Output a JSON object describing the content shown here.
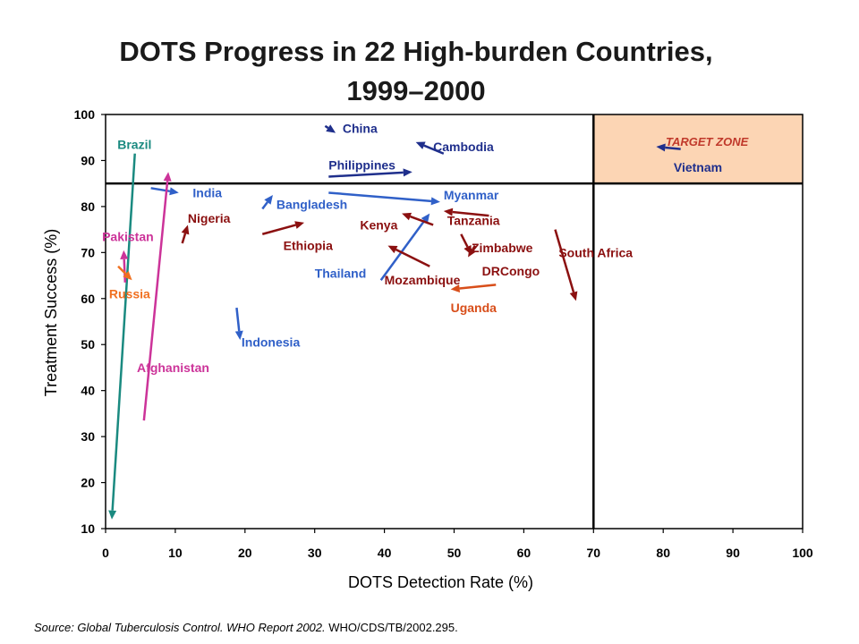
{
  "title_line1": "DOTS Progress in 22 High-burden Countries,",
  "title_line2": "1999–2000",
  "source_italic": "Source: Global Tuberculosis Control. WHO Report 2002.",
  "source_plain": " WHO/CDS/TB/2002.295.",
  "chart_data": {
    "type": "scatter",
    "xlabel": "DOTS Detection Rate (%)",
    "ylabel": "Treatment Success (%)",
    "xlim": [
      0,
      100
    ],
    "ylim": [
      10,
      100
    ],
    "xticks": [
      0,
      10,
      20,
      30,
      40,
      50,
      60,
      70,
      80,
      90,
      100
    ],
    "yticks": [
      10,
      20,
      30,
      40,
      50,
      60,
      70,
      80,
      90,
      100
    ],
    "grid": false,
    "target_zone": {
      "label": "TARGET ZONE",
      "x_min": 70,
      "y_min": 85,
      "color": "#fcd5b4"
    },
    "target_lines": {
      "x": 70,
      "y": 85
    },
    "series": [
      {
        "name": "China",
        "color": "#1f2f8c",
        "x1": 31.5,
        "y1": 97.5,
        "x2": 33,
        "y2": 96,
        "label_x": 34,
        "label_y": 97
      },
      {
        "name": "Cambodia",
        "color": "#1f2f8c",
        "x1": 48.5,
        "y1": 91.5,
        "x2": 44.5,
        "y2": 94,
        "label_x": 47,
        "label_y": 93
      },
      {
        "name": "Vietnam",
        "color": "#1f2f8c",
        "x1": 82.5,
        "y1": 92.5,
        "x2": 79,
        "y2": 93,
        "label_x": 81.5,
        "label_y": 88.5
      },
      {
        "name": "Philippines",
        "color": "#1f2f8c",
        "x1": 32,
        "y1": 86.5,
        "x2": 44,
        "y2": 87.5,
        "label_x": 32,
        "label_y": 89
      },
      {
        "name": "Brazil",
        "color": "#1a8a80",
        "x1": 4.2,
        "y1": 91.5,
        "x2": 0.9,
        "y2": 12,
        "label_x": 1.7,
        "label_y": 93.5
      },
      {
        "name": "India",
        "color": "#3060c8",
        "x1": 6.5,
        "y1": 84,
        "x2": 10.5,
        "y2": 83,
        "label_x": 12.5,
        "label_y": 83
      },
      {
        "name": "Myanmar",
        "color": "#3060c8",
        "x1": 32,
        "y1": 83,
        "x2": 48,
        "y2": 81,
        "label_x": 48.5,
        "label_y": 82.5
      },
      {
        "name": "Bangladesh",
        "color": "#3060c8",
        "x1": 22.5,
        "y1": 79.5,
        "x2": 24,
        "y2": 82.5,
        "label_x": 24.5,
        "label_y": 80.5
      },
      {
        "name": "Thailand",
        "color": "#3060c8",
        "x1": 39.5,
        "y1": 64,
        "x2": 46.5,
        "y2": 78.5,
        "label_x": 30,
        "label_y": 65.5
      },
      {
        "name": "Indonesia",
        "color": "#3060c8",
        "x1": 18.8,
        "y1": 58,
        "x2": 19.3,
        "y2": 51,
        "label_x": 19.5,
        "label_y": 50.5
      },
      {
        "name": "Nigeria",
        "color": "#8b1010",
        "x1": 11,
        "y1": 72,
        "x2": 11.8,
        "y2": 76,
        "label_x": 11.8,
        "label_y": 77.5
      },
      {
        "name": "Ethiopia",
        "color": "#8b1010",
        "x1": 22.5,
        "y1": 74,
        "x2": 28.5,
        "y2": 76.5,
        "label_x": 25.5,
        "label_y": 71.5
      },
      {
        "name": "Kenya",
        "color": "#8b1010",
        "x1": 47,
        "y1": 76,
        "x2": 42.5,
        "y2": 78.5,
        "label_x": 36.5,
        "label_y": 76
      },
      {
        "name": "Tanzania",
        "color": "#8b1010",
        "x1": 55,
        "y1": 78,
        "x2": 48.5,
        "y2": 79,
        "label_x": 49,
        "label_y": 77
      },
      {
        "name": "Zimbabwe",
        "color": "#8b1010",
        "x1": 51,
        "y1": 74,
        "x2": 52.5,
        "y2": 69.5,
        "label_x": 52.5,
        "label_y": 71
      },
      {
        "name": "Mozambique",
        "color": "#8b1010",
        "x1": 46.5,
        "y1": 67,
        "x2": 40.5,
        "y2": 71.5,
        "label_x": 40,
        "label_y": 64
      },
      {
        "name": "DRCongo",
        "color": "#8b1010",
        "x1": 53,
        "y1": 71.5,
        "x2": 52,
        "y2": 69,
        "label_x": 54,
        "label_y": 66
      },
      {
        "name": "South Africa",
        "color": "#8b1010",
        "x1": 64.5,
        "y1": 75,
        "x2": 67.5,
        "y2": 59.5,
        "label_x": 65,
        "label_y": 70
      },
      {
        "name": "Pakistan",
        "color": "#cc3399",
        "x1": 2.8,
        "y1": 63.5,
        "x2": 2.6,
        "y2": 70.5,
        "label_x": -0.5,
        "label_y": 73.5
      },
      {
        "name": "Afghanistan",
        "color": "#cc3399",
        "x1": 5.5,
        "y1": 33.5,
        "x2": 9,
        "y2": 87.5,
        "label_x": 4.5,
        "label_y": 45
      },
      {
        "name": "Russia",
        "color": "#f07020",
        "x1": 1.8,
        "y1": 67,
        "x2": 3.8,
        "y2": 64,
        "label_x": 0.5,
        "label_y": 61
      },
      {
        "name": "Uganda",
        "color": "#d84e1a",
        "x1": 56,
        "y1": 63,
        "x2": 49.5,
        "y2": 62,
        "label_x": 49.5,
        "label_y": 58
      }
    ]
  }
}
